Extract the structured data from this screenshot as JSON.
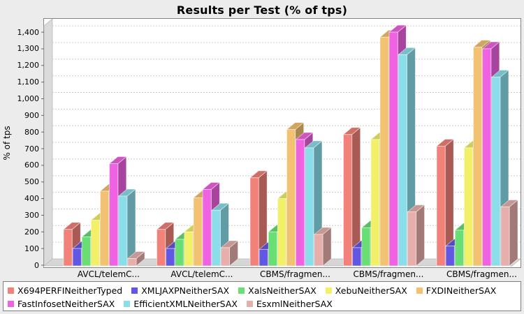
{
  "title": "Results per Test (% of tps)",
  "y_axis": {
    "label": "% of tps",
    "min": 0,
    "max": 1400,
    "step": 100
  },
  "chart_data": {
    "type": "bar",
    "style": "3d-grouped-bars",
    "title": "Results per Test (% of tps)",
    "xlabel": "",
    "ylabel": "% of tps",
    "ylim": [
      0,
      1470
    ],
    "y_ticks": [
      0,
      100,
      200,
      300,
      400,
      500,
      600,
      700,
      800,
      900,
      1000,
      1100,
      1200,
      1300,
      1400
    ],
    "grid": "horizontal-dashed",
    "legend_position": "bottom",
    "categories": [
      "AVCL/telemC...",
      "AVCL/telemC...",
      "CBMS/fragmen...",
      "CBMS/fragmen...",
      "CBMS/fragmen..."
    ],
    "series": [
      {
        "name": "X694PERFINeitherTyped",
        "color": "#F28179",
        "values": [
          215,
          215,
          525,
          785,
          715
        ]
      },
      {
        "name": "XMLJAXPNeitherSAX",
        "color": "#6257E2",
        "values": [
          100,
          100,
          95,
          105,
          115
        ]
      },
      {
        "name": "XalsNeitherSAX",
        "color": "#69DE74",
        "values": [
          170,
          155,
          200,
          225,
          210
        ]
      },
      {
        "name": "XebuNeitherSAX",
        "color": "#F1F068",
        "values": [
          270,
          200,
          400,
          755,
          705
        ]
      },
      {
        "name": "FXDINeitherSAX",
        "color": "#F2C171",
        "values": [
          445,
          405,
          815,
          1370,
          1310
        ]
      },
      {
        "name": "FastInfosetNeitherSAX",
        "color": "#EF62E2",
        "values": [
          610,
          455,
          755,
          1400,
          1300
        ]
      },
      {
        "name": "EfficientXMLNeitherSAX",
        "color": "#8BDDEA",
        "values": [
          415,
          330,
          705,
          1265,
          1130
        ]
      },
      {
        "name": "EsxmlNeitherSAX",
        "color": "#E7AFAB",
        "values": [
          40,
          105,
          185,
          320,
          350
        ]
      }
    ],
    "colors": {
      "background": "#ECECEC",
      "plot_background": "#FFFFFF",
      "plot_border": "#848484",
      "wall": "#DBDBDB",
      "floor": "#D6D6D6",
      "gridline": "#D9CACA",
      "tick": "#666666"
    }
  }
}
